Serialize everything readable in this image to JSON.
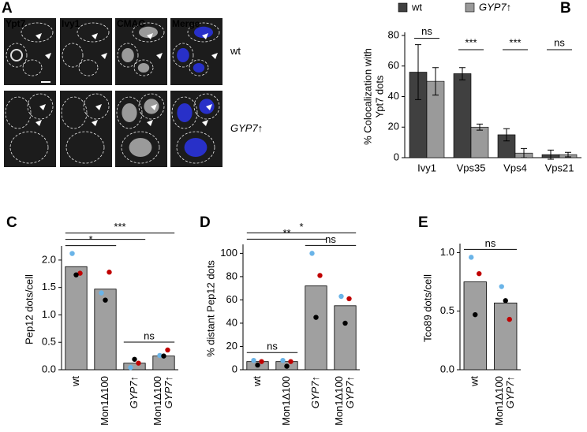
{
  "panel_a": {
    "label": "A",
    "channels": [
      "Ypt7",
      "Ivy1",
      "CMAC",
      "Merge"
    ],
    "channel_colors": [
      "#7fe03a",
      "#d21ad2",
      "#5aaaf0",
      "#ffffff"
    ],
    "rows": [
      "wt",
      "GYP7↑"
    ],
    "row_italic": [
      false,
      true
    ]
  },
  "chart_data": [
    {
      "type": "grouped-bar",
      "panel": "B",
      "categories": [
        "Ivy1",
        "Vps35",
        "Vps4",
        "Vps21"
      ],
      "series": [
        {
          "name": "wt",
          "color": "#404040",
          "italic": false,
          "values": [
            56,
            55,
            15,
            2
          ],
          "errors": [
            18,
            4,
            4,
            3
          ]
        },
        {
          "name": "GYP7↑",
          "color": "#9a9a9a",
          "italic": true,
          "values": [
            50,
            20,
            3,
            2
          ],
          "errors": [
            9,
            2,
            3,
            1.5
          ]
        }
      ],
      "significance": [
        "ns",
        "***",
        "***",
        "ns"
      ],
      "ylabel": [
        "% Colocalization with",
        "Ypt7 dots"
      ],
      "ylim": [
        0,
        80
      ],
      "yticks": [
        0,
        20,
        40,
        60,
        80
      ]
    },
    {
      "type": "dot-bar",
      "panel": "C",
      "categories": [
        [
          "wt"
        ],
        [
          "Mon1Δ100"
        ],
        [
          "GYP7↑"
        ],
        [
          "Mon1Δ100",
          "GYP7↑"
        ]
      ],
      "italic_categories": [
        false,
        false,
        true,
        true
      ],
      "values": [
        1.88,
        1.47,
        0.12,
        0.25
      ],
      "color": "#a0a0a0",
      "points": [
        {
          "color": "#6ab4e8",
          "values": [
            2.12,
            1.4,
            0.04,
            0.26
          ]
        },
        {
          "color": "#c00000",
          "values": [
            1.76,
            1.78,
            0.12,
            0.36
          ]
        },
        {
          "color": "#000000",
          "values": [
            1.73,
            1.27,
            0.19,
            0.25
          ]
        }
      ],
      "comparisons": [
        {
          "groups": [
            2,
            3
          ],
          "label": "ns"
        },
        {
          "groups": [
            0,
            1
          ],
          "label": "*"
        },
        {
          "groups": [
            0,
            2
          ],
          "label": null
        },
        {
          "groups": [
            0,
            3
          ],
          "label": "***"
        }
      ],
      "ylabel": "Pep12 dots/cell",
      "ylim": [
        0,
        2.2
      ],
      "yticks": [
        {
          "value": 0,
          "label": "0.0"
        },
        0.5,
        {
          "value": 1,
          "label": "1.0"
        },
        1.5,
        {
          "value": 2,
          "label": "2.0"
        }
      ]
    },
    {
      "type": "dot-bar",
      "panel": "D",
      "categories": [
        [
          "wt"
        ],
        [
          "Mon1Δ100"
        ],
        [
          "GYP7↑"
        ],
        [
          "Mon1Δ100",
          "GYP7↑"
        ]
      ],
      "italic_categories": [
        false,
        false,
        true,
        true
      ],
      "values": [
        7,
        7,
        72,
        55
      ],
      "color": "#a0a0a0",
      "points": [
        {
          "color": "#6ab4e8",
          "values": [
            8,
            8,
            100,
            63
          ]
        },
        {
          "color": "#c00000",
          "values": [
            7,
            7,
            81,
            61
          ]
        },
        {
          "color": "#000000",
          "values": [
            4,
            3,
            45,
            40
          ]
        }
      ],
      "comparisons": [
        {
          "groups": [
            0,
            1
          ],
          "label": "ns"
        },
        {
          "groups": [
            2,
            3
          ],
          "label": "ns"
        },
        {
          "groups": [
            0,
            2
          ],
          "label": "**"
        },
        {
          "groups": [
            0,
            3
          ],
          "label": "*"
        }
      ],
      "ylabel": "% distant Pep12 dots",
      "ylim": [
        0,
        105
      ],
      "yticks": [
        0,
        20,
        40,
        60,
        80,
        100
      ]
    },
    {
      "type": "dot-bar",
      "panel": "E",
      "categories": [
        [
          "wt"
        ],
        [
          "Mon1Δ100",
          "GYP7↑"
        ]
      ],
      "italic_categories": [
        false,
        true
      ],
      "values": [
        0.75,
        0.57
      ],
      "color": "#a0a0a0",
      "points": [
        {
          "color": "#6ab4e8",
          "values": [
            0.96,
            0.71
          ]
        },
        {
          "color": "#c00000",
          "values": [
            0.82,
            0.43
          ]
        },
        {
          "color": "#000000",
          "values": [
            0.47,
            0.59
          ]
        }
      ],
      "comparisons": [
        {
          "groups": [
            0,
            1
          ],
          "label": "ns"
        }
      ],
      "ylabel": "Tco89 dots/cell",
      "ylim": [
        0,
        1.05
      ],
      "yticks": [
        {
          "value": 0,
          "label": "0.0"
        },
        0.5,
        {
          "value": 1,
          "label": "1.0"
        }
      ]
    }
  ]
}
